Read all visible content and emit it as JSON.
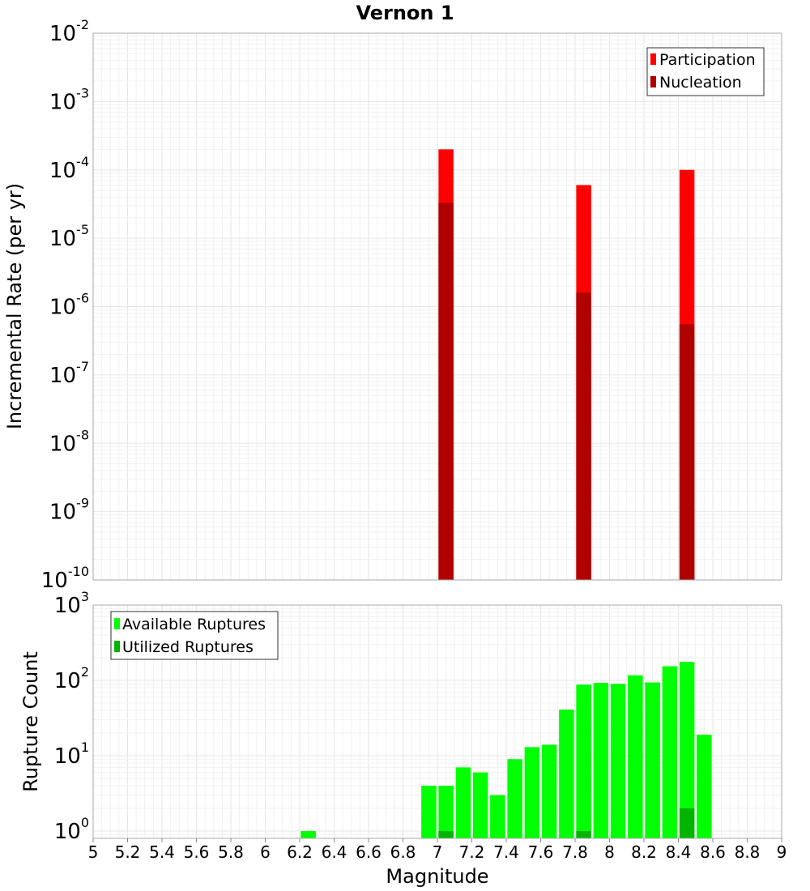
{
  "chart_data": [
    {
      "type": "bar",
      "title": "Vernon 1",
      "ylabel": "Incremental Rate (per yr)",
      "yscale": "log",
      "ylim": [
        1e-10,
        0.01
      ],
      "xlim": [
        5,
        9
      ],
      "grid": true,
      "legend_position": "top-right",
      "series": [
        {
          "name": "Participation",
          "color": "#ff0000",
          "x": [
            7.05,
            7.85,
            8.45
          ],
          "values": [
            0.0002,
            6e-05,
            0.0001
          ]
        },
        {
          "name": "Nucleation",
          "color": "#b00000",
          "x": [
            7.05,
            7.85,
            8.45
          ],
          "values": [
            3.3e-05,
            1.6e-06,
            5.5e-07
          ]
        }
      ]
    },
    {
      "type": "bar",
      "xlabel": "Magnitude",
      "ylabel": "Rupture Count",
      "yscale": "log",
      "ylim": [
        0.8,
        1000
      ],
      "xlim": [
        5,
        9
      ],
      "grid": true,
      "legend_position": "top-left",
      "series": [
        {
          "name": "Available Ruptures",
          "color": "#00ff00",
          "x": [
            6.25,
            6.95,
            7.05,
            7.15,
            7.25,
            7.35,
            7.45,
            7.55,
            7.65,
            7.75,
            7.85,
            7.95,
            8.05,
            8.15,
            8.25,
            8.35,
            8.45,
            8.55
          ],
          "values": [
            1,
            4,
            4,
            7,
            6,
            3,
            9,
            13,
            14,
            41,
            88,
            93,
            90,
            117,
            94,
            154,
            176,
            19
          ]
        },
        {
          "name": "Utilized Ruptures",
          "color": "#00b400",
          "x": [
            7.05,
            7.85,
            8.45
          ],
          "values": [
            1,
            1,
            2
          ]
        }
      ]
    }
  ],
  "x_ticks": [
    "5",
    "5.2",
    "5.4",
    "5.6",
    "5.8",
    "6",
    "6.2",
    "6.4",
    "6.6",
    "6.8",
    "7",
    "7.2",
    "7.4",
    "7.6",
    "7.8",
    "8",
    "8.2",
    "8.4",
    "8.6",
    "8.8",
    "9"
  ],
  "top_y_ticks": [
    {
      "base": "10",
      "exp": "-10"
    },
    {
      "base": "10",
      "exp": "-9"
    },
    {
      "base": "10",
      "exp": "-8"
    },
    {
      "base": "10",
      "exp": "-7"
    },
    {
      "base": "10",
      "exp": "-6"
    },
    {
      "base": "10",
      "exp": "-5"
    },
    {
      "base": "10",
      "exp": "-4"
    },
    {
      "base": "10",
      "exp": "-3"
    },
    {
      "base": "10",
      "exp": "-2"
    }
  ],
  "bottom_y_ticks": [
    {
      "base": "10",
      "exp": "0"
    },
    {
      "base": "10",
      "exp": "1"
    },
    {
      "base": "10",
      "exp": "2"
    },
    {
      "base": "10",
      "exp": "3"
    }
  ]
}
